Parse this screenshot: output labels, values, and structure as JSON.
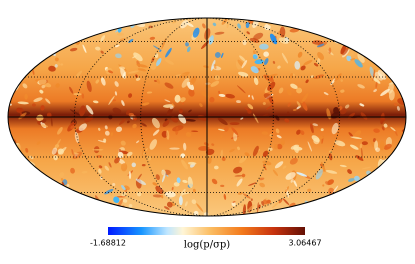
{
  "colorbar": {
    "min": "-1.68812",
    "max": "3.06467",
    "label": "log(p/σp)"
  }
}
